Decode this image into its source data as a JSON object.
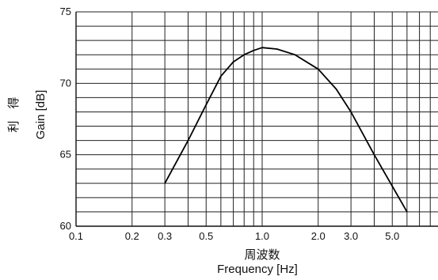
{
  "chart_data": {
    "type": "line",
    "title": "",
    "xlabel_jp": "周波数",
    "xlabel": "Frequency [Hz]",
    "ylabel_jp": "利　得",
    "ylabel": "Gain [dB]",
    "x_scale": "log",
    "xlim": [
      0.1,
      10
    ],
    "ylim": [
      60,
      75
    ],
    "grid": true,
    "x_tick_labels": [
      {
        "value": 0.1,
        "label": "0.1"
      },
      {
        "value": 0.2,
        "label": "0.2"
      },
      {
        "value": 0.3,
        "label": "0.3"
      },
      {
        "value": 0.5,
        "label": "0.5"
      },
      {
        "value": 1.0,
        "label": "1.0"
      },
      {
        "value": 2.0,
        "label": "2.0"
      },
      {
        "value": 3.0,
        "label": "3.0"
      },
      {
        "value": 5.0,
        "label": "5.0"
      }
    ],
    "y_tick_labels": [
      {
        "value": 60,
        "label": "60"
      },
      {
        "value": 65,
        "label": "65"
      },
      {
        "value": 70,
        "label": "70"
      },
      {
        "value": 75,
        "label": "75"
      }
    ],
    "series": [
      {
        "x": [
          0.3,
          0.4,
          0.5,
          0.6,
          0.7,
          0.8,
          0.9,
          1.0,
          1.2,
          1.5,
          2.0,
          2.5,
          3.0,
          4.0,
          5.0,
          6.0
        ],
        "y": [
          63.0,
          66.0,
          68.5,
          70.5,
          71.5,
          72.0,
          72.3,
          72.5,
          72.4,
          72.0,
          71.0,
          69.6,
          68.0,
          65.0,
          62.8,
          61.0
        ]
      }
    ]
  }
}
